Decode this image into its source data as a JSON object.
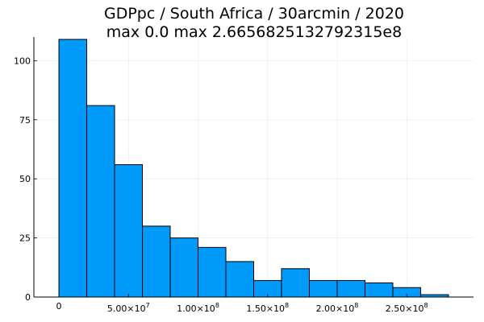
{
  "chart_data": {
    "type": "bar",
    "title": "GDPpc / South Africa / 30arcmin / 2020",
    "subtitle": "max 0.0  max 2.6656825132792315e8",
    "xlabel": "",
    "ylabel": "",
    "bin_width": 20000000,
    "bin_edges": [
      0,
      20000000,
      40000000,
      60000000,
      80000000,
      100000000,
      120000000,
      140000000,
      160000000,
      180000000,
      200000000,
      220000000,
      240000000,
      260000000,
      280000000
    ],
    "values": [
      109,
      81,
      56,
      30,
      25,
      21,
      15,
      7,
      12,
      7,
      7,
      6,
      4,
      1
    ],
    "xlim": [
      -18000000,
      298000000
    ],
    "ylim": [
      0,
      110
    ],
    "x_ticks": [
      {
        "value": 0,
        "mantissa": "0",
        "exponent": ""
      },
      {
        "value": 50000000,
        "mantissa": "5.00×10",
        "exponent": "7"
      },
      {
        "value": 100000000,
        "mantissa": "1.00×10",
        "exponent": "8"
      },
      {
        "value": 150000000,
        "mantissa": "1.50×10",
        "exponent": "8"
      },
      {
        "value": 200000000,
        "mantissa": "2.00×10",
        "exponent": "8"
      },
      {
        "value": 250000000,
        "mantissa": "2.50×10",
        "exponent": "8"
      }
    ],
    "y_ticks": [
      0,
      25,
      50,
      75,
      100
    ],
    "grid": true,
    "legend": "none",
    "bar_color": "#009AFA",
    "bar_edge_color": "#000000"
  }
}
